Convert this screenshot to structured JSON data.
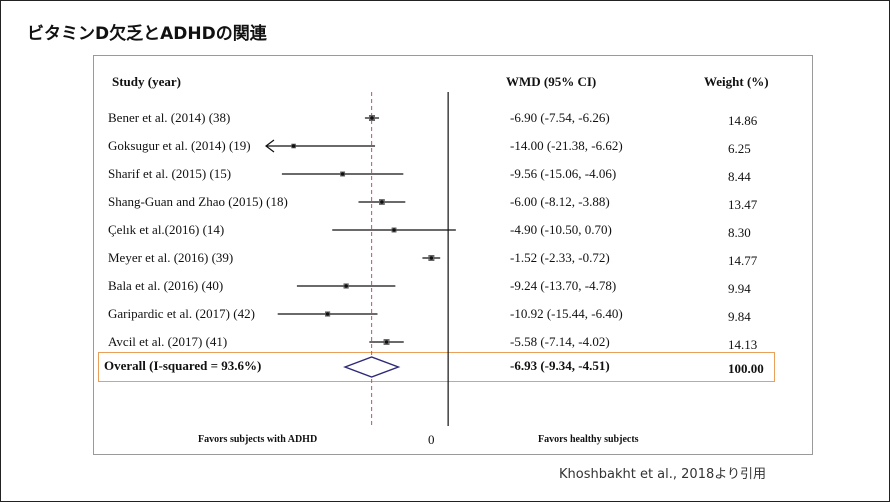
{
  "slide": {
    "title": "ビタミンD欠乏とADHDの関連",
    "credit": "Khoshbakht et al., 2018より引用"
  },
  "table": {
    "col_study": "Study (year)",
    "col_wmd": "WMD (95% CI)",
    "col_weight": "Weight (%)",
    "footer_left": "Favors subjects with ADHD",
    "footer_zero": "0",
    "footer_right": "Favors healthy subjects"
  },
  "chart_data": {
    "type": "forest",
    "xlim": [
      -16.5,
      9.5
    ],
    "null_line": 0,
    "overall_line": -6.93,
    "studies": [
      {
        "label": "Bener et al. (2014) (38)",
        "wmd": -6.9,
        "lo": -7.54,
        "hi": -6.26,
        "ci_text": "-6.90 (-7.54, -6.26)",
        "weight": "14.86"
      },
      {
        "label": "Goksugur et al. (2014) (19)",
        "wmd": -14.0,
        "lo": -21.38,
        "hi": -6.62,
        "ci_text": "-14.00 (-21.38, -6.62)",
        "weight": "6.25",
        "truncated_left": true
      },
      {
        "label": "Sharif et al. (2015) (15)",
        "wmd": -9.56,
        "lo": -15.06,
        "hi": -4.06,
        "ci_text": "-9.56 (-15.06, -4.06)",
        "weight": "8.44"
      },
      {
        "label": "Shang-Guan and Zhao (2015) (18)",
        "wmd": -6.0,
        "lo": -8.12,
        "hi": -3.88,
        "ci_text": "-6.00 (-8.12, -3.88)",
        "weight": "13.47"
      },
      {
        "label": "Çelık et al.(2016) (14)",
        "wmd": -4.9,
        "lo": -10.5,
        "hi": 0.7,
        "ci_text": "-4.90 (-10.50, 0.70)",
        "weight": "8.30"
      },
      {
        "label": "Meyer et al. (2016) (39)",
        "wmd": -1.52,
        "lo": -2.33,
        "hi": -0.72,
        "ci_text": "-1.52 (-2.33, -0.72)",
        "weight": "14.77"
      },
      {
        "label": "Bala et al. (2016) (40)",
        "wmd": -9.24,
        "lo": -13.7,
        "hi": -4.78,
        "ci_text": "-9.24 (-13.70, -4.78)",
        "weight": "9.94"
      },
      {
        "label": "Garipardic et al. (2017) (42)",
        "wmd": -10.92,
        "lo": -15.44,
        "hi": -6.4,
        "ci_text": "-10.92 (-15.44, -6.40)",
        "weight": "9.84"
      },
      {
        "label": "Avcil et al. (2017) (41)",
        "wmd": -5.58,
        "lo": -7.14,
        "hi": -4.02,
        "ci_text": "-5.58 (-7.14, -4.02)",
        "weight": "14.13"
      }
    ],
    "overall": {
      "label": "Overall (I-squared = 93.6%)",
      "wmd": -6.93,
      "lo": -9.34,
      "hi": -4.51,
      "ci_text": "-6.93 (-9.34, -4.51)",
      "weight": "100.00"
    },
    "colors": {
      "marker": "#111111",
      "diamond": "#2e2a78",
      "overall_line": "#c0506a",
      "box": "#e8a05a"
    }
  }
}
